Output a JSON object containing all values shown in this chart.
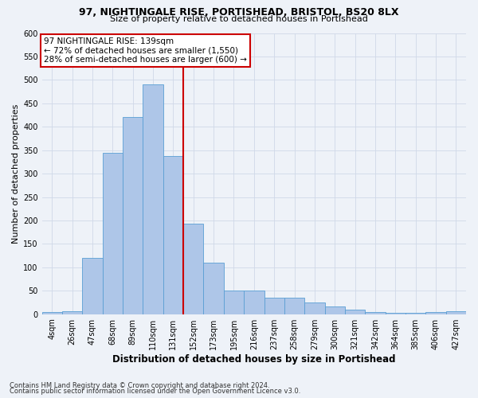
{
  "title1": "97, NIGHTINGALE RISE, PORTISHEAD, BRISTOL, BS20 8LX",
  "title2": "Size of property relative to detached houses in Portishead",
  "xlabel": "Distribution of detached houses by size in Portishead",
  "ylabel": "Number of detached properties",
  "footnote1": "Contains HM Land Registry data © Crown copyright and database right 2024.",
  "footnote2": "Contains public sector information licensed under the Open Government Licence v3.0.",
  "bin_labels": [
    "4sqm",
    "26sqm",
    "47sqm",
    "68sqm",
    "89sqm",
    "110sqm",
    "131sqm",
    "152sqm",
    "173sqm",
    "195sqm",
    "216sqm",
    "237sqm",
    "258sqm",
    "279sqm",
    "300sqm",
    "321sqm",
    "342sqm",
    "364sqm",
    "385sqm",
    "406sqm",
    "427sqm"
  ],
  "bar_heights": [
    4,
    6,
    120,
    345,
    420,
    490,
    337,
    193,
    110,
    50,
    50,
    35,
    35,
    25,
    17,
    10,
    5,
    3,
    3,
    5,
    6
  ],
  "bar_color": "#aec6e8",
  "bar_edge_color": "#5a9fd4",
  "grid_color": "#d0d8e8",
  "red_line_x": 6.5,
  "annotation_text": "97 NIGHTINGALE RISE: 139sqm\n← 72% of detached houses are smaller (1,550)\n28% of semi-detached houses are larger (600) →",
  "annotation_box_color": "#ffffff",
  "annotation_box_edge": "#cc0000",
  "ylim": [
    0,
    600
  ],
  "yticks": [
    0,
    50,
    100,
    150,
    200,
    250,
    300,
    350,
    400,
    450,
    500,
    550,
    600
  ],
  "background_color": "#eef2f8",
  "title1_fontsize": 9,
  "title2_fontsize": 8,
  "ylabel_fontsize": 8,
  "xlabel_fontsize": 8.5,
  "tick_fontsize": 7,
  "annot_fontsize": 7.5,
  "footnote_fontsize": 6
}
